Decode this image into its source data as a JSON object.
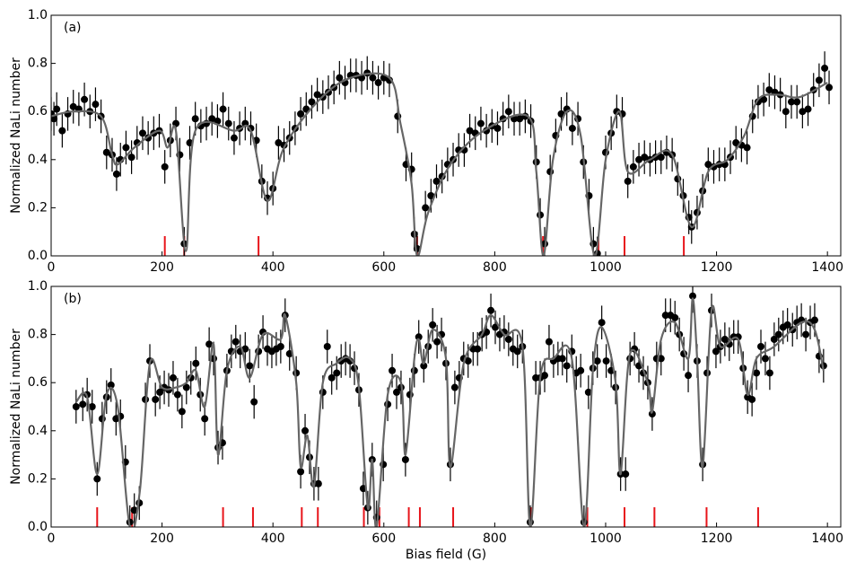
{
  "chart_data": [
    {
      "type": "scatter",
      "panel_label": "(a)",
      "ylabel": "Normalized NaLi number",
      "xlim": [
        0,
        1424
      ],
      "ylim": [
        0,
        1
      ],
      "xticks": [
        0,
        200,
        400,
        600,
        800,
        1000,
        1200,
        1400
      ],
      "yticks": [
        {
          "value": 0,
          "label": "0.0"
        },
        0.2,
        0.4,
        0.6,
        0.8,
        {
          "value": 1,
          "label": "1.0"
        }
      ],
      "series": [
        {
          "style": "points",
          "color": "#000000",
          "error": 0.07,
          "x": [
            0,
            5,
            10,
            20,
            30,
            40,
            50,
            60,
            70,
            80,
            90,
            100,
            110,
            118,
            125,
            135,
            145,
            155,
            165,
            175,
            185,
            195,
            205,
            215,
            225,
            232,
            240,
            250,
            260,
            270,
            280,
            290,
            300,
            310,
            320,
            330,
            340,
            350,
            360,
            370,
            380,
            390,
            400,
            410,
            420,
            430,
            440,
            450,
            460,
            470,
            480,
            490,
            500,
            510,
            520,
            530,
            540,
            550,
            560,
            570,
            580,
            590,
            600,
            610,
            625,
            640,
            650,
            655,
            660,
            675,
            685,
            695,
            705,
            715,
            725,
            735,
            745,
            755,
            765,
            775,
            785,
            795,
            805,
            815,
            825,
            835,
            845,
            855,
            865,
            875,
            882,
            890,
            900,
            910,
            920,
            930,
            940,
            950,
            960,
            970,
            978,
            985,
            1000,
            1010,
            1020,
            1030,
            1040,
            1050,
            1060,
            1070,
            1080,
            1090,
            1100,
            1110,
            1120,
            1130,
            1140,
            1150,
            1155,
            1165,
            1175,
            1185,
            1195,
            1205,
            1215,
            1225,
            1235,
            1245,
            1255,
            1265,
            1275,
            1285,
            1295,
            1305,
            1315,
            1325,
            1335,
            1345,
            1355,
            1365,
            1375,
            1385,
            1395,
            1403
          ],
          "values": [
            0.59,
            0.57,
            0.61,
            0.52,
            0.59,
            0.62,
            0.61,
            0.65,
            0.6,
            0.63,
            0.58,
            0.43,
            0.42,
            0.34,
            0.4,
            0.45,
            0.41,
            0.47,
            0.51,
            0.49,
            0.51,
            0.52,
            0.37,
            0.48,
            0.55,
            0.42,
            0.05,
            0.47,
            0.57,
            0.54,
            0.55,
            0.57,
            0.56,
            0.61,
            0.55,
            0.49,
            0.53,
            0.55,
            0.53,
            0.48,
            0.31,
            0.24,
            0.28,
            0.47,
            0.46,
            0.49,
            0.53,
            0.59,
            0.61,
            0.64,
            0.67,
            0.66,
            0.68,
            0.7,
            0.74,
            0.72,
            0.75,
            0.75,
            0.74,
            0.76,
            0.74,
            0.72,
            0.74,
            0.73,
            0.58,
            0.38,
            0.36,
            0.09,
            0.03,
            0.2,
            0.25,
            0.31,
            0.33,
            0.38,
            0.4,
            0.44,
            0.44,
            0.52,
            0.51,
            0.55,
            0.52,
            0.54,
            0.53,
            0.57,
            0.6,
            0.57,
            0.57,
            0.58,
            0.56,
            0.39,
            0.17,
            0.05,
            0.35,
            0.5,
            0.59,
            0.61,
            0.53,
            0.57,
            0.39,
            0.25,
            0.05,
            0.01,
            0.43,
            0.51,
            0.6,
            0.59,
            0.31,
            0.37,
            0.4,
            0.41,
            0.4,
            0.41,
            0.41,
            0.43,
            0.42,
            0.32,
            0.25,
            0.16,
            0.12,
            0.18,
            0.27,
            0.38,
            0.37,
            0.38,
            0.38,
            0.41,
            0.47,
            0.46,
            0.45,
            0.58,
            0.64,
            0.65,
            0.69,
            0.68,
            0.67,
            0.6,
            0.64,
            0.64,
            0.6,
            0.61,
            0.69,
            0.73,
            0.78,
            0.7
          ]
        },
        {
          "style": "line",
          "color": "#666666",
          "x": [
            0,
            40,
            90,
            110,
            120,
            150,
            195,
            210,
            225,
            243,
            260,
            330,
            360,
            390,
            420,
            480,
            540,
            610,
            630,
            650,
            660,
            680,
            720,
            780,
            860,
            875,
            888,
            905,
            930,
            955,
            980,
            1000,
            1025,
            1040,
            1080,
            1120,
            1155,
            1185,
            1220,
            1250,
            1275,
            1310,
            1350,
            1400
          ],
          "values": [
            0.58,
            0.6,
            0.58,
            0.42,
            0.38,
            0.45,
            0.52,
            0.45,
            0.52,
            0.02,
            0.52,
            0.52,
            0.52,
            0.23,
            0.45,
            0.64,
            0.74,
            0.74,
            0.55,
            0.3,
            0.0,
            0.18,
            0.38,
            0.52,
            0.58,
            0.35,
            0.0,
            0.4,
            0.6,
            0.5,
            0.0,
            0.4,
            0.6,
            0.35,
            0.4,
            0.42,
            0.12,
            0.35,
            0.4,
            0.5,
            0.65,
            0.67,
            0.66,
            0.72
          ]
        }
      ],
      "markers": {
        "color": "#e8141a",
        "x": [
          205,
          240,
          374,
          660,
          887,
          987,
          1034,
          1141
        ]
      }
    },
    {
      "type": "scatter",
      "panel_label": "(b)",
      "ylabel": "Normalized NaLi number",
      "xlabel": "Bias field (G)",
      "xlim": [
        0,
        1424
      ],
      "ylim": [
        0,
        1
      ],
      "xticks": [
        0,
        200,
        400,
        600,
        800,
        1000,
        1200,
        1400
      ],
      "yticks": [
        {
          "value": 0,
          "label": "0.0"
        },
        0.2,
        0.4,
        0.6,
        0.8,
        {
          "value": 1,
          "label": "1.0"
        }
      ],
      "series": [
        {
          "style": "points",
          "color": "#000000",
          "error": 0.07,
          "x": [
            45,
            57,
            65,
            74,
            83,
            92,
            100,
            108,
            117,
            125,
            134,
            142,
            150,
            159,
            170,
            178,
            188,
            196,
            204,
            212,
            220,
            228,
            236,
            244,
            252,
            261,
            269,
            277,
            285,
            293,
            301,
            309,
            317,
            325,
            333,
            341,
            350,
            358,
            366,
            374,
            382,
            390,
            398,
            406,
            414,
            422,
            430,
            442,
            450,
            458,
            466,
            474,
            482,
            490,
            498,
            506,
            515,
            523,
            531,
            539,
            547,
            555,
            563,
            571,
            579,
            587,
            599,
            607,
            615,
            623,
            631,
            639,
            647,
            655,
            663,
            672,
            680,
            688,
            696,
            704,
            712,
            720,
            728,
            736,
            744,
            752,
            761,
            769,
            777,
            785,
            793,
            801,
            809,
            817,
            825,
            833,
            841,
            850,
            864,
            874,
            882,
            890,
            898,
            906,
            914,
            922,
            930,
            939,
            947,
            955,
            961,
            969,
            977,
            985,
            993,
            1001,
            1010,
            1018,
            1027,
            1036,
            1044,
            1052,
            1060,
            1068,
            1076,
            1084,
            1092,
            1100,
            1108,
            1117,
            1125,
            1133,
            1141,
            1149,
            1157,
            1165,
            1175,
            1183,
            1191,
            1199,
            1207,
            1215,
            1223,
            1231,
            1239,
            1248,
            1256,
            1264,
            1272,
            1280,
            1288,
            1296,
            1304,
            1312,
            1320,
            1328,
            1337,
            1345,
            1353,
            1361,
            1369,
            1377,
            1385,
            1393
          ],
          "values": [
            0.5,
            0.51,
            0.55,
            0.5,
            0.2,
            0.45,
            0.54,
            0.59,
            0.45,
            0.46,
            0.27,
            0.02,
            0.07,
            0.1,
            0.53,
            0.69,
            0.53,
            0.56,
            0.58,
            0.57,
            0.62,
            0.55,
            0.48,
            0.58,
            0.62,
            0.68,
            0.55,
            0.45,
            0.76,
            0.7,
            0.33,
            0.35,
            0.65,
            0.73,
            0.77,
            0.73,
            0.74,
            0.67,
            0.52,
            0.73,
            0.81,
            0.74,
            0.73,
            0.74,
            0.75,
            0.88,
            0.72,
            0.64,
            0.23,
            0.4,
            0.29,
            0.18,
            0.18,
            0.56,
            0.75,
            0.62,
            0.64,
            0.69,
            0.7,
            0.69,
            0.66,
            0.57,
            0.16,
            0.08,
            0.28,
            0.04,
            0.26,
            0.51,
            0.65,
            0.56,
            0.58,
            0.28,
            0.55,
            0.65,
            0.79,
            0.67,
            0.75,
            0.84,
            0.77,
            0.8,
            0.68,
            0.26,
            0.58,
            0.62,
            0.7,
            0.69,
            0.74,
            0.74,
            0.8,
            0.81,
            0.9,
            0.83,
            0.8,
            0.81,
            0.78,
            0.74,
            0.73,
            0.75,
            0.02,
            0.62,
            0.62,
            0.63,
            0.77,
            0.69,
            0.7,
            0.7,
            0.67,
            0.73,
            0.64,
            0.65,
            0.02,
            0.56,
            0.66,
            0.69,
            0.85,
            0.69,
            0.65,
            0.58,
            0.22,
            0.22,
            0.7,
            0.74,
            0.67,
            0.64,
            0.6,
            0.47,
            0.7,
            0.7,
            0.88,
            0.88,
            0.87,
            0.8,
            0.72,
            0.63,
            0.96,
            0.69,
            0.26,
            0.64,
            0.9,
            0.73,
            0.75,
            0.78,
            0.76,
            0.79,
            0.79,
            0.66,
            0.54,
            0.53,
            0.64,
            0.75,
            0.7,
            0.64,
            0.78,
            0.8,
            0.83,
            0.84,
            0.82,
            0.85,
            0.86,
            0.8,
            0.85,
            0.86,
            0.71,
            0.67
          ]
        },
        {
          "style": "line",
          "color": "#666666",
          "x": [
            45,
            65,
            83,
            100,
            120,
            142,
            160,
            178,
            200,
            225,
            244,
            261,
            277,
            293,
            301,
            317,
            341,
            358,
            382,
            414,
            422,
            442,
            450,
            462,
            474,
            490,
            515,
            539,
            555,
            571,
            579,
            587,
            607,
            631,
            639,
            655,
            663,
            672,
            688,
            712,
            720,
            744,
            777,
            793,
            817,
            850,
            864,
            882,
            906,
            939,
            961,
            977,
            993,
            1018,
            1027,
            1044,
            1076,
            1084,
            1100,
            1125,
            1149,
            1157,
            1165,
            1175,
            1191,
            1207,
            1239,
            1256,
            1272,
            1304,
            1353,
            1377,
            1393
          ],
          "values": [
            0.52,
            0.54,
            0.22,
            0.55,
            0.5,
            0.0,
            0.15,
            0.68,
            0.58,
            0.58,
            0.6,
            0.65,
            0.5,
            0.76,
            0.3,
            0.65,
            0.75,
            0.62,
            0.8,
            0.78,
            0.88,
            0.6,
            0.25,
            0.38,
            0.17,
            0.6,
            0.68,
            0.7,
            0.58,
            0.08,
            0.28,
            0.0,
            0.55,
            0.6,
            0.3,
            0.7,
            0.78,
            0.68,
            0.82,
            0.7,
            0.25,
            0.68,
            0.8,
            0.88,
            0.8,
            0.75,
            0.0,
            0.62,
            0.7,
            0.7,
            0.0,
            0.65,
            0.83,
            0.6,
            0.22,
            0.72,
            0.6,
            0.48,
            0.78,
            0.85,
            0.7,
            0.95,
            0.7,
            0.25,
            0.9,
            0.75,
            0.78,
            0.55,
            0.7,
            0.75,
            0.85,
            0.82,
            0.65
          ]
        }
      ],
      "markers": {
        "color": "#e8141a",
        "x": [
          83,
          146,
          310,
          364,
          452,
          481,
          564,
          592,
          645,
          665,
          725,
          865,
          967,
          1034,
          1088,
          1182,
          1275
        ]
      }
    }
  ]
}
